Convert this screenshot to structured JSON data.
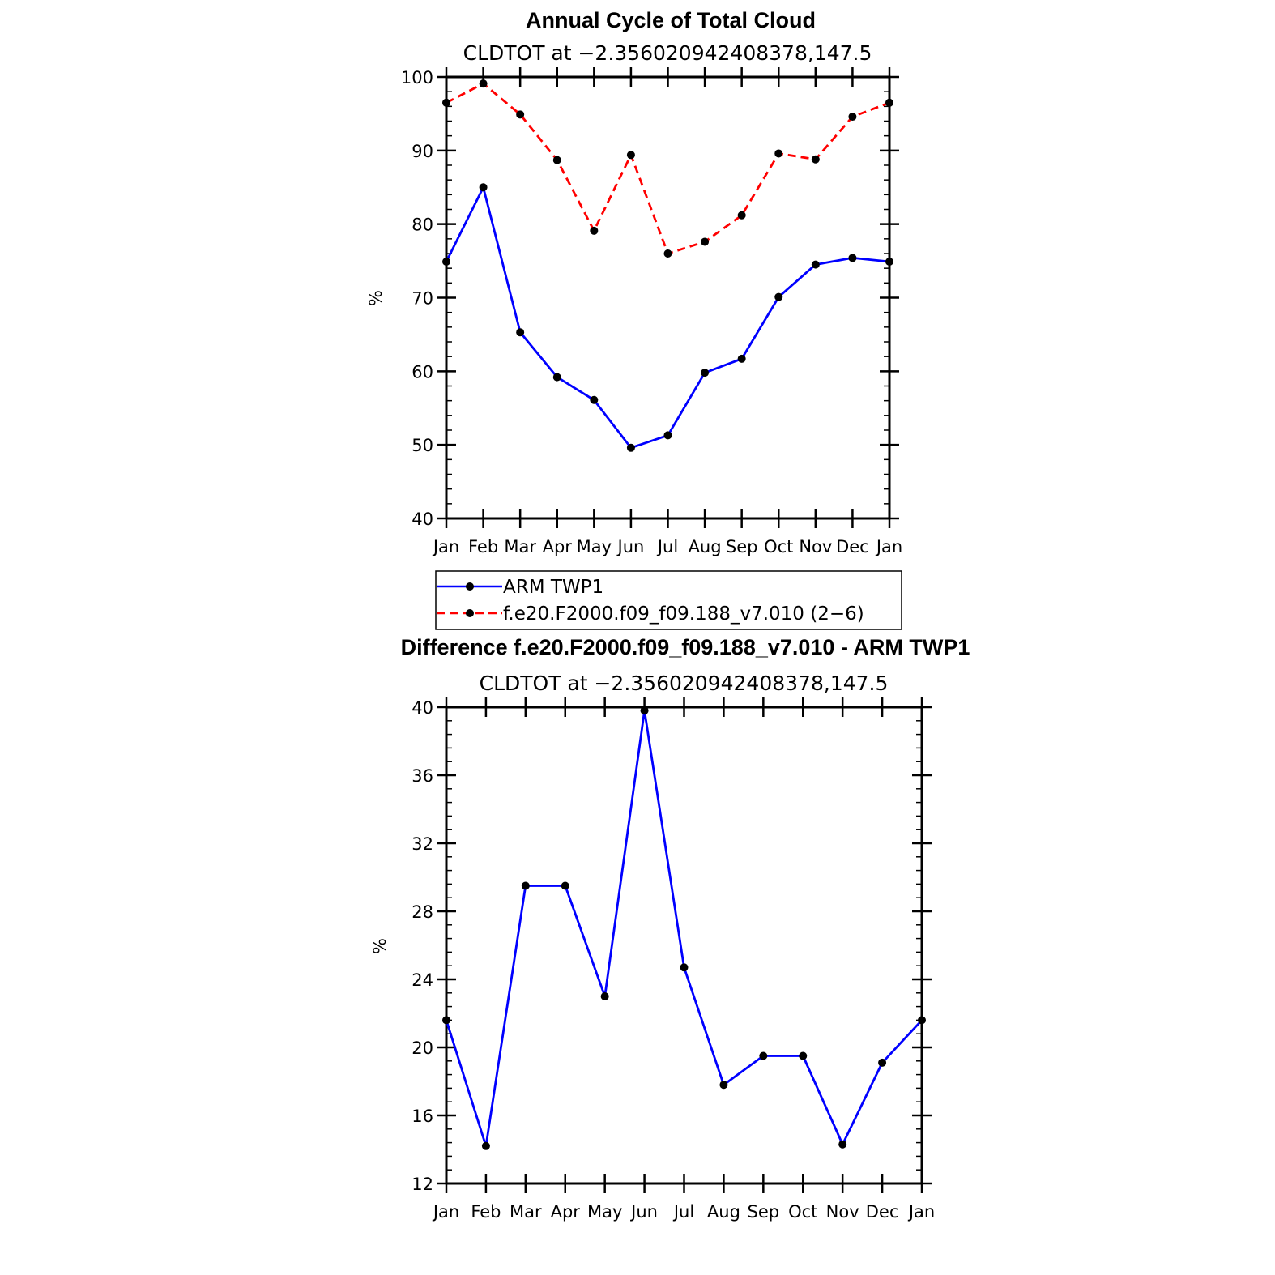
{
  "chart_data": [
    {
      "type": "line",
      "title": "Annual Cycle of Total Cloud",
      "subtitle": "CLDTOT at −2.356020942408378,147.5",
      "xlabel": "",
      "ylabel": "%",
      "categories": [
        "Jan",
        "Feb",
        "Mar",
        "Apr",
        "May",
        "Jun",
        "Jul",
        "Aug",
        "Sep",
        "Oct",
        "Nov",
        "Dec",
        "Jan"
      ],
      "ylim": [
        40,
        100
      ],
      "yticks": [
        40,
        50,
        60,
        70,
        80,
        90,
        100
      ],
      "yminor_step": 2,
      "series": [
        {
          "name": "ARM TWP1",
          "color": "#0000ff",
          "dashed": false,
          "values": [
            74.9,
            85.0,
            65.3,
            59.2,
            56.1,
            49.6,
            51.3,
            59.8,
            61.7,
            70.1,
            74.5,
            75.4,
            74.9
          ]
        },
        {
          "name": "f.e20.F2000.f09_f09.188_v7.010 (2−6)",
          "color": "#ff0000",
          "dashed": true,
          "values": [
            96.5,
            99.1,
            94.9,
            88.7,
            79.1,
            89.4,
            76.0,
            77.6,
            81.2,
            89.6,
            88.8,
            94.6,
            96.5
          ]
        }
      ]
    },
    {
      "type": "line",
      "title": "Difference f.e20.F2000.f09_f09.188_v7.010 - ARM TWP1",
      "subtitle": "CLDTOT at −2.356020942408378,147.5",
      "xlabel": "",
      "ylabel": "%",
      "categories": [
        "Jan",
        "Feb",
        "Mar",
        "Apr",
        "May",
        "Jun",
        "Jul",
        "Aug",
        "Sep",
        "Oct",
        "Nov",
        "Dec",
        "Jan"
      ],
      "ylim": [
        12,
        40
      ],
      "yticks": [
        12,
        16,
        20,
        24,
        28,
        32,
        36,
        40
      ],
      "yminor_step": 0.8,
      "series": [
        {
          "name": "Difference",
          "color": "#0000ff",
          "dashed": false,
          "values": [
            21.6,
            14.2,
            29.5,
            29.5,
            23.0,
            39.8,
            24.7,
            17.8,
            19.5,
            19.5,
            14.3,
            19.1,
            21.6
          ]
        }
      ]
    }
  ]
}
